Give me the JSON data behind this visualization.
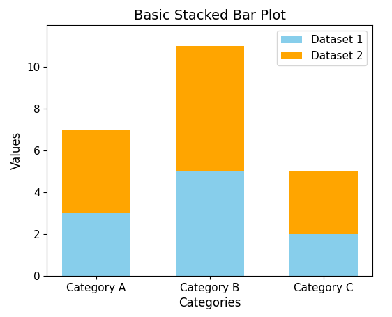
{
  "title": "Basic Stacked Bar Plot",
  "xlabel": "Categories",
  "ylabel": "Values",
  "categories": [
    "Category A",
    "Category B",
    "Category C"
  ],
  "dataset1": [
    3,
    5,
    2
  ],
  "dataset2": [
    4,
    6,
    3
  ],
  "color1": "#87CEEB",
  "color2": "#FFA500",
  "legend_labels": [
    "Dataset 1",
    "Dataset 2"
  ],
  "ylim": [
    0,
    12
  ],
  "yticks": [
    0,
    2,
    4,
    6,
    8,
    10
  ],
  "figsize": [
    5.62,
    4.55
  ],
  "dpi": 100,
  "bar_width": 0.6,
  "title_fontsize": 14,
  "label_fontsize": 12,
  "tick_fontsize": 11,
  "legend_fontsize": 11
}
